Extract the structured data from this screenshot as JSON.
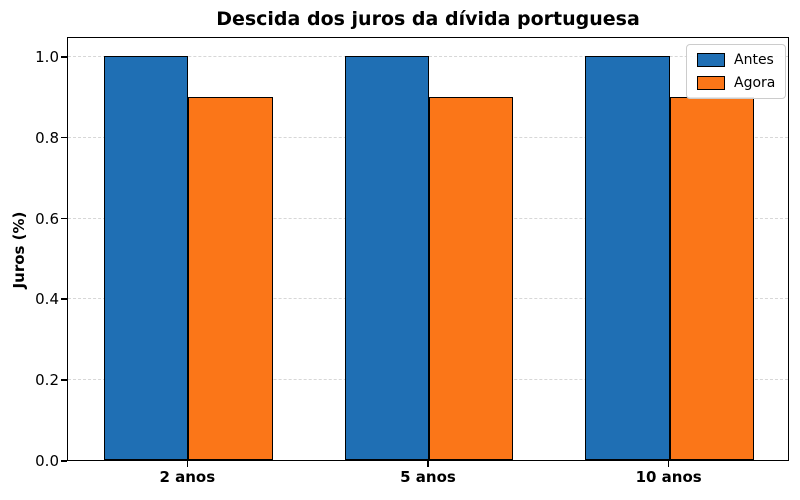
{
  "chart_data": {
    "type": "bar",
    "title": "Descida dos juros da dívida portuguesa",
    "xlabel": "",
    "ylabel": "Juros (%)",
    "categories": [
      "2 anos",
      "5 anos",
      "10 anos"
    ],
    "series": [
      {
        "name": "Antes",
        "values": [
          1.0,
          1.0,
          1.0
        ],
        "color": "#1f6fb4"
      },
      {
        "name": "Agora",
        "values": [
          0.9,
          0.9,
          0.9
        ],
        "color": "#fb7618"
      }
    ],
    "bar_width": 0.35,
    "ylim": [
      0,
      1.05
    ],
    "yticks": [
      0.0,
      0.2,
      0.4,
      0.6,
      0.8,
      1.0
    ],
    "ytick_labels": [
      "0.0",
      "0.2",
      "0.4",
      "0.6",
      "0.8",
      "1.0"
    ],
    "grid": true,
    "grid_style": "dashed",
    "legend_position": "upper right",
    "bar_edge_color": "#000000",
    "background_color": "#ffffff"
  }
}
